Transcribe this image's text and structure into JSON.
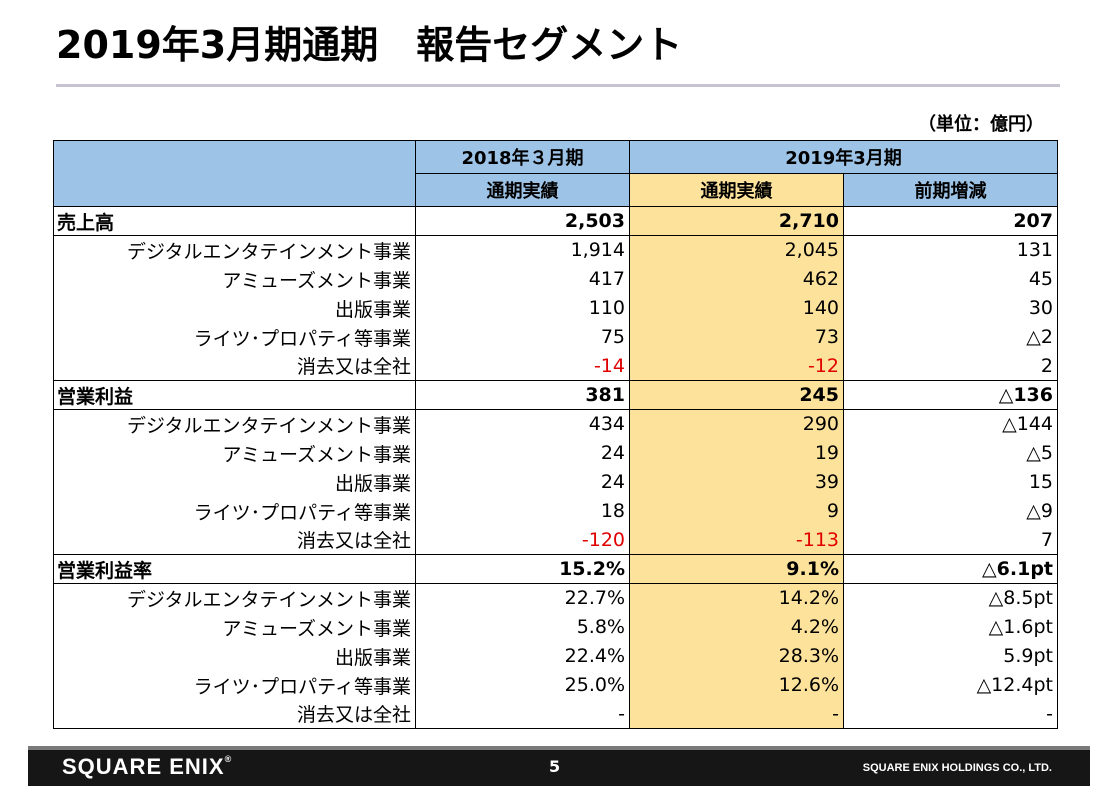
{
  "title": "2019年3月期通期　報告セグメント",
  "unit": "（単位：億円）",
  "headers": {
    "period_prev": "2018年３月期",
    "period_curr": "2019年3月期",
    "col_prev": "通期実績",
    "col_curr": "通期実績",
    "col_diff": "前期増減"
  },
  "sections": [
    {
      "label": "売上高",
      "total": [
        "2,503",
        "2,710",
        "207"
      ],
      "rows": [
        {
          "label": "デジタルエンタテインメント事業",
          "v": [
            "1,914",
            "2,045",
            "131"
          ]
        },
        {
          "label": "アミューズメント事業",
          "v": [
            "417",
            "462",
            "45"
          ]
        },
        {
          "label": "出版事業",
          "v": [
            "110",
            "140",
            "30"
          ]
        },
        {
          "label": "ライツ･プロパティ等事業",
          "v": [
            "75",
            "73",
            "△2"
          ]
        },
        {
          "label": "消去又は全社",
          "v": [
            "-14",
            "-12",
            "2"
          ]
        }
      ]
    },
    {
      "label": "営業利益",
      "total": [
        "381",
        "245",
        "△136"
      ],
      "rows": [
        {
          "label": "デジタルエンタテインメント事業",
          "v": [
            "434",
            "290",
            "△144"
          ]
        },
        {
          "label": "アミューズメント事業",
          "v": [
            "24",
            "19",
            "△5"
          ]
        },
        {
          "label": "出版事業",
          "v": [
            "24",
            "39",
            "15"
          ]
        },
        {
          "label": "ライツ･プロパティ等事業",
          "v": [
            "18",
            "9",
            "△9"
          ]
        },
        {
          "label": "消去又は全社",
          "v": [
            "-120",
            "-113",
            "7"
          ]
        }
      ]
    },
    {
      "label": "営業利益率",
      "total": [
        "15.2%",
        "9.1%",
        "△6.1pt"
      ],
      "rows": [
        {
          "label": "デジタルエンタテインメント事業",
          "v": [
            "22.7%",
            "14.2%",
            "△8.5pt"
          ]
        },
        {
          "label": "アミューズメント事業",
          "v": [
            "5.8%",
            "4.2%",
            "△1.6pt"
          ]
        },
        {
          "label": "出版事業",
          "v": [
            "22.4%",
            "28.3%",
            "5.9pt"
          ]
        },
        {
          "label": "ライツ･プロパティ等事業",
          "v": [
            "25.0%",
            "12.6%",
            "△12.4pt"
          ]
        },
        {
          "label": "消去又は全社",
          "v": [
            "-",
            "-",
            "-"
          ]
        }
      ]
    }
  ],
  "colors": {
    "header_blue": "#9dc3e6",
    "highlight_yellow": "#fde29b",
    "negative_red": "#e00000"
  },
  "footer": {
    "logo": "SQUARE ENIX",
    "logo_mark": "®",
    "page": "5",
    "company": "SQUARE ENIX HOLDINGS CO., LTD."
  }
}
